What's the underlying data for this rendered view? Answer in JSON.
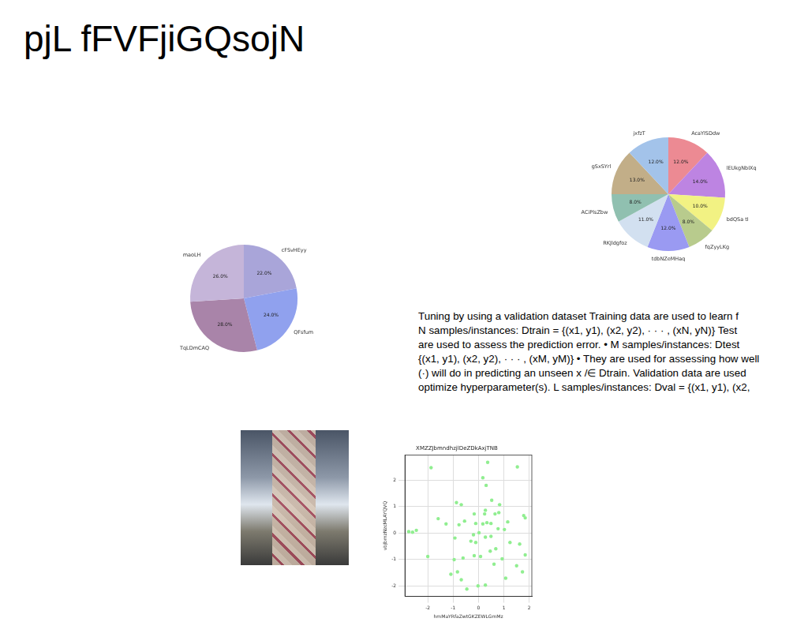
{
  "title": "pjL fFVFjiGQsojN",
  "text": [
    "Tuning by using a validation dataset Training data are used to learn f",
    "N samples/instances: Dtrain = {(x1, y1), (x2, y2), · · · , (xN, yN)} Test",
    "are used to assess the prediction error. • M samples/instances: Dtest",
    "{(x1, y1), (x2, y2), · · · , (xM, yM)} • They are used for assessing how well",
    "(·) will do in predicting an unseen x /∈ Dtrain. Validation data are used",
    "optimize hyperparameter(s). L samples/instances: Dval = {(x1, y1), (x2,"
  ],
  "chart_data": [
    {
      "type": "pie",
      "categories": [
        "AcaYlSDdw",
        "lEUkgNbIXq",
        "bdQSa tI",
        "fqZyyLKg",
        "tdbNZeMHaq",
        "RKJldgfoz",
        "ACiPlsZbw",
        "gSxSYrl",
        "jxfzT"
      ],
      "values": [
        12,
        14,
        10,
        8,
        12,
        11,
        8,
        13,
        12
      ],
      "value_labels": [
        "12.0%",
        "14.0%",
        "10.0%",
        "8.0%",
        "12.0%",
        "11.0%",
        "8.0%",
        "13.0%",
        "12.0%"
      ],
      "colors": [
        "#ec8a93",
        "#bd84e2",
        "#f2f283",
        "#b8cb8d",
        "#9a9af2",
        "#d2e0f0",
        "#90c0b0",
        "#c2ae88",
        "#a3c3ea"
      ],
      "data_labels": true
    },
    {
      "type": "pie",
      "categories": [
        "cFSvHEyy",
        "QFsfum",
        "TqLDmCAQ",
        "maoLH"
      ],
      "values": [
        22,
        24,
        28,
        26
      ],
      "value_labels": [
        "22.0%",
        "24.0%",
        "28.0%",
        "26.0%"
      ],
      "colors": [
        "#a9a5d9",
        "#90a1ee",
        "#a984a9",
        "#c5b5d9"
      ],
      "data_labels": true
    },
    {
      "type": "scatter",
      "title": "XMZZJbmndhzjlDeZDkAxjTNB",
      "x_label": "hmMaYRfaZwtGKZEWLGmMz",
      "y_label": "vbJbmzNzcMLAYQVQ",
      "x": [
        -1.87,
        0.36,
        1.53,
        0.17,
        0.3,
        -0.87,
        -0.68,
        0.52,
        0.83,
        -1.59,
        -1.28,
        0.27,
        0.24,
        -0.17,
        0.65,
        0.8,
        1.78,
        1.84,
        -0.77,
        -0.55,
        -0.11,
        0.17,
        0.33,
        0.49,
        1.15,
        0.77,
        1.02,
        -2.75,
        -2.6,
        -2.45,
        -0.2,
        0.27,
        0.49,
        -0.3,
        -0.11,
        -0.93,
        0.02,
        1.24,
        1.62,
        0.68,
        0.46,
        -2.0,
        -0.61,
        -0.96,
        -0.17,
        0.08,
        1.84,
        0.93,
        0.61,
        1.5,
        -0.83,
        -1.09,
        1.07,
        1.73,
        -0.02,
        0.27,
        -0.46,
        -0.68
      ],
      "values": [
        2.47,
        2.67,
        2.5,
        2.09,
        1.8,
        1.15,
        1.07,
        1.24,
        1.07,
        0.54,
        0.34,
        0.86,
        0.72,
        0.72,
        0.72,
        0.77,
        0.66,
        0.57,
        0.31,
        0.45,
        0.36,
        0.34,
        0.39,
        0.36,
        0.42,
        0.16,
        0.13,
        0.05,
        0.03,
        0.1,
        -0.07,
        -0.16,
        -0.13,
        -0.31,
        -0.36,
        -0.19,
        0.01,
        -0.36,
        -0.42,
        -0.6,
        -0.69,
        -0.89,
        -0.95,
        -1.01,
        -0.86,
        -0.89,
        -0.83,
        -0.98,
        -1.18,
        -1.24,
        -1.47,
        -1.56,
        -1.71,
        -1.47,
        -2.0,
        -1.97,
        -2.12,
        -1.77
      ],
      "color": "#90ee90",
      "marker": "circle",
      "xlim": [
        -2.9,
        2.1
      ],
      "xticks": [
        -2,
        -1,
        0,
        1,
        2
      ],
      "ylim": [
        -2.4,
        2.95
      ],
      "yticks": [
        -2,
        -1,
        0,
        1,
        2
      ],
      "grid": true
    }
  ]
}
